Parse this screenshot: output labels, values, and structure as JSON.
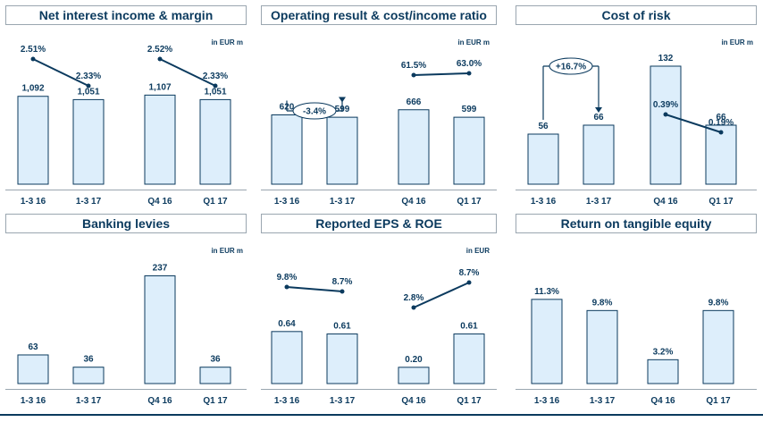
{
  "colors": {
    "bar_fill": "#ddeefb",
    "bar_stroke": "#0b3a5e",
    "text": "#0b3a5e",
    "header_border": "#9aa6b0"
  },
  "panels": [
    {
      "title": "Net interest income & margin",
      "unit": "in EUR m"
    },
    {
      "title": "Operating result & cost/income ratio",
      "unit": "in EUR m"
    },
    {
      "title": "Cost of risk",
      "unit": "in EUR m"
    },
    {
      "title": "Banking levies",
      "unit": "in EUR m"
    },
    {
      "title": "Reported EPS & ROE",
      "unit": "in EUR"
    },
    {
      "title": "Return on tangible equity",
      "unit": ""
    }
  ],
  "chart_data": [
    {
      "type": "bar",
      "title": "Net interest income & margin",
      "unit": "in EUR m",
      "groups": [
        {
          "categories": [
            "1-3 16",
            "1-3 17"
          ],
          "values": [
            1092,
            1051
          ],
          "labels": [
            "1,092",
            "1,051"
          ],
          "line": {
            "values": [
              2.51,
              2.33
            ],
            "labels": [
              "2.51%",
              "2.33%"
            ]
          }
        },
        {
          "categories": [
            "Q4 16",
            "Q1 17"
          ],
          "values": [
            1107,
            1051
          ],
          "labels": [
            "1,107",
            "1,051"
          ],
          "line": {
            "values": [
              2.52,
              2.33
            ],
            "labels": [
              "2.52%",
              "2.33%"
            ]
          }
        }
      ]
    },
    {
      "type": "bar",
      "title": "Operating result & cost/income ratio",
      "unit": "in EUR m",
      "groups": [
        {
          "categories": [
            "1-3 16",
            "1-3 17"
          ],
          "values": [
            620,
            599
          ],
          "labels": [
            "620",
            "599"
          ],
          "change": "-3.4%"
        },
        {
          "categories": [
            "Q4 16",
            "Q1 17"
          ],
          "values": [
            666,
            599
          ],
          "labels": [
            "666",
            "599"
          ],
          "line": {
            "values": [
              61.5,
              63.0
            ],
            "labels": [
              "61.5%",
              "63.0%"
            ]
          }
        }
      ]
    },
    {
      "type": "bar",
      "title": "Cost of risk",
      "unit": "in EUR m",
      "groups": [
        {
          "categories": [
            "1-3 16",
            "1-3 17"
          ],
          "values": [
            56,
            66
          ],
          "labels": [
            "56",
            "66"
          ],
          "change": "+16.7%"
        },
        {
          "categories": [
            "Q4 16",
            "Q1 17"
          ],
          "values": [
            132,
            66
          ],
          "labels": [
            "132",
            "66"
          ],
          "line": {
            "values": [
              0.39,
              0.19
            ],
            "labels": [
              "0.39%",
              "0.19%"
            ]
          }
        }
      ]
    },
    {
      "type": "bar",
      "title": "Banking levies",
      "unit": "in EUR m",
      "groups": [
        {
          "categories": [
            "1-3 16",
            "1-3 17"
          ],
          "values": [
            63,
            36
          ],
          "labels": [
            "63",
            "36"
          ]
        },
        {
          "categories": [
            "Q4 16",
            "Q1 17"
          ],
          "values": [
            237,
            36
          ],
          "labels": [
            "237",
            "36"
          ]
        }
      ]
    },
    {
      "type": "bar",
      "title": "Reported EPS & ROE",
      "unit": "in EUR",
      "groups": [
        {
          "categories": [
            "1-3 16",
            "1-3 17"
          ],
          "values": [
            0.64,
            0.61
          ],
          "labels": [
            "0.64",
            "0.61"
          ],
          "line": {
            "values": [
              9.8,
              8.7
            ],
            "labels": [
              "9.8%",
              "8.7%"
            ]
          }
        },
        {
          "categories": [
            "Q4 16",
            "Q1 17"
          ],
          "values": [
            0.2,
            0.61
          ],
          "labels": [
            "0.20",
            "0.61"
          ],
          "line": {
            "values": [
              2.8,
              8.7
            ],
            "labels": [
              "2.8%",
              "8.7%"
            ]
          }
        }
      ]
    },
    {
      "type": "bar",
      "title": "Return on tangible equity",
      "unit": "",
      "groups": [
        {
          "categories": [
            "1-3 16",
            "1-3 17"
          ],
          "values": [
            11.3,
            9.8
          ],
          "labels": [
            "11.3%",
            "9.8%"
          ]
        },
        {
          "categories": [
            "Q4 16",
            "Q1 17"
          ],
          "values": [
            3.2,
            9.8
          ],
          "labels": [
            "3.2%",
            "9.8%"
          ]
        }
      ]
    }
  ]
}
